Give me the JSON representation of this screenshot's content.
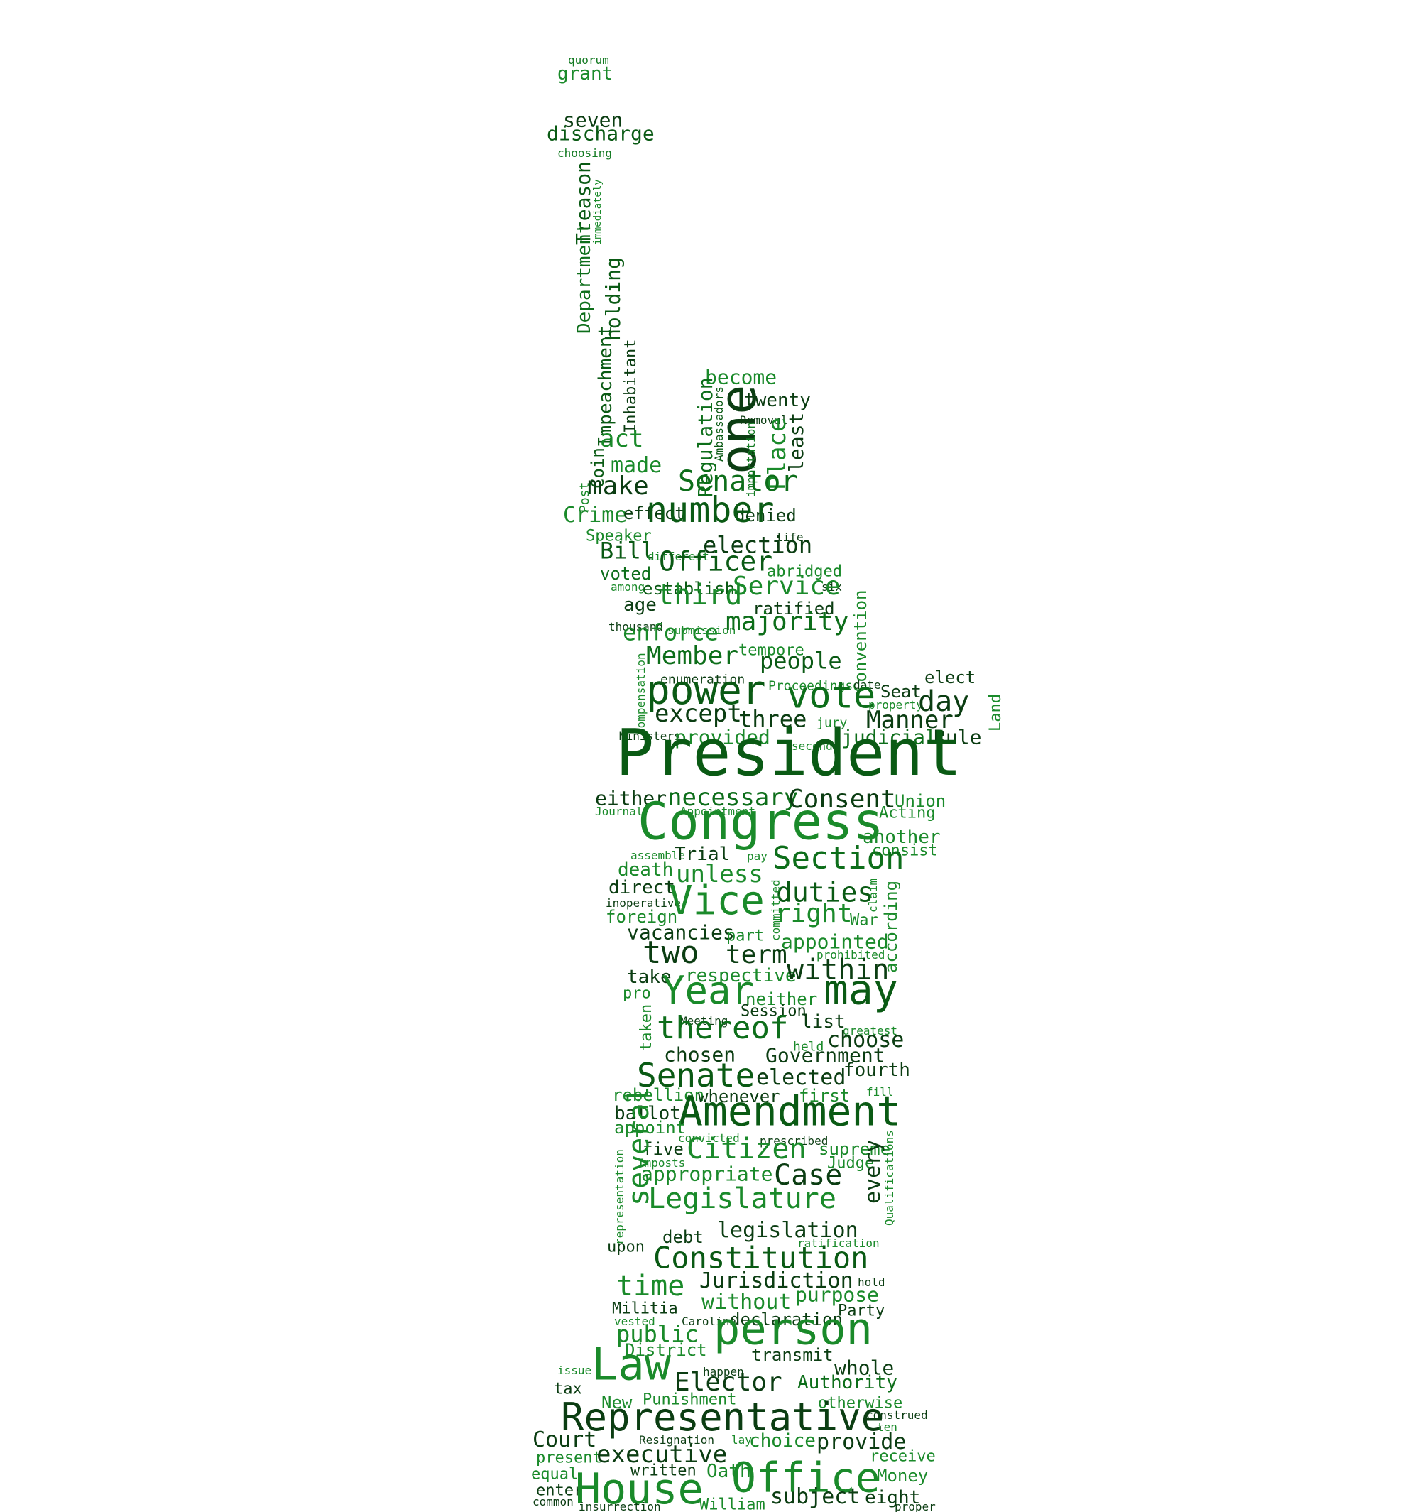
{
  "palette": [
    "#0a5a14",
    "#0d6e1a",
    "#1a8a2a",
    "#0b3d12",
    "#2a9a3a",
    "#137a22"
  ],
  "words": [
    {
      "text": "quorum"
    },
    {
      "text": "grant"
    },
    {
      "text": "seven"
    },
    {
      "text": "discharge"
    },
    {
      "text": "choosing"
    },
    {
      "text": "Treason"
    },
    {
      "text": "immediately"
    },
    {
      "text": "Department"
    },
    {
      "text": "holding"
    },
    {
      "text": "Impeachment"
    },
    {
      "text": "Inhabitant"
    },
    {
      "text": "become"
    },
    {
      "text": "twenty"
    },
    {
      "text": "Removal"
    },
    {
      "text": "Regulation"
    },
    {
      "text": "Ambassadors"
    },
    {
      "text": "one"
    },
    {
      "text": "importation"
    },
    {
      "text": "Place"
    },
    {
      "text": "least"
    },
    {
      "text": "act"
    },
    {
      "text": "Coin"
    },
    {
      "text": "made"
    },
    {
      "text": "Post"
    },
    {
      "text": "make"
    },
    {
      "text": "Senator"
    },
    {
      "text": "Crime"
    },
    {
      "text": "effect"
    },
    {
      "text": "denied"
    },
    {
      "text": "Speaker"
    },
    {
      "text": "number"
    },
    {
      "text": "life"
    },
    {
      "text": "Bill"
    },
    {
      "text": "different"
    },
    {
      "text": "election"
    },
    {
      "text": "voted"
    },
    {
      "text": "Officer"
    },
    {
      "text": "abridged"
    },
    {
      "text": "among"
    },
    {
      "text": "six"
    },
    {
      "text": "establish"
    },
    {
      "text": "Service"
    },
    {
      "text": "age"
    },
    {
      "text": "third"
    },
    {
      "text": "ratified"
    },
    {
      "text": "thousand"
    },
    {
      "text": "submission"
    },
    {
      "text": "majority"
    },
    {
      "text": "Convention"
    },
    {
      "text": "enforce"
    },
    {
      "text": "tempore"
    },
    {
      "text": "Member"
    },
    {
      "text": "people"
    },
    {
      "text": "Compensation"
    },
    {
      "text": "enumeration"
    },
    {
      "text": "Proceedings"
    },
    {
      "text": "date"
    },
    {
      "text": "elect"
    },
    {
      "text": "power"
    },
    {
      "text": "vote"
    },
    {
      "text": "Seat"
    },
    {
      "text": "property"
    },
    {
      "text": "day"
    },
    {
      "text": "Land"
    },
    {
      "text": "except"
    },
    {
      "text": "three"
    },
    {
      "text": "jury"
    },
    {
      "text": "Manner"
    },
    {
      "text": "Ministers"
    },
    {
      "text": "provided"
    },
    {
      "text": "judicial"
    },
    {
      "text": "Rule"
    },
    {
      "text": "second"
    },
    {
      "text": "President"
    },
    {
      "text": "either"
    },
    {
      "text": "necessary"
    },
    {
      "text": "Consent"
    },
    {
      "text": "Union"
    },
    {
      "text": "Journal"
    },
    {
      "text": "Appointment"
    },
    {
      "text": "Acting"
    },
    {
      "text": "Congress"
    },
    {
      "text": "another"
    },
    {
      "text": "assemble"
    },
    {
      "text": "Trial"
    },
    {
      "text": "pay"
    },
    {
      "text": "consist"
    },
    {
      "text": "Section"
    },
    {
      "text": "death"
    },
    {
      "text": "unless"
    },
    {
      "text": "direct"
    },
    {
      "text": "inoperative"
    },
    {
      "text": "Vice"
    },
    {
      "text": "duties"
    },
    {
      "text": "claim"
    },
    {
      "text": "according"
    },
    {
      "text": "foreign"
    },
    {
      "text": "committed"
    },
    {
      "text": "right"
    },
    {
      "text": "War"
    },
    {
      "text": "vacancies"
    },
    {
      "text": "part"
    },
    {
      "text": "appointed"
    },
    {
      "text": "prohibited"
    },
    {
      "text": "two"
    },
    {
      "text": "term"
    },
    {
      "text": "take"
    },
    {
      "text": "respective"
    },
    {
      "text": "within"
    },
    {
      "text": "pro"
    },
    {
      "text": "Year"
    },
    {
      "text": "neither"
    },
    {
      "text": "may"
    },
    {
      "text": "taken"
    },
    {
      "text": "Meeting"
    },
    {
      "text": "Session"
    },
    {
      "text": "list"
    },
    {
      "text": "greatest"
    },
    {
      "text": "thereof"
    },
    {
      "text": "held"
    },
    {
      "text": "choose"
    },
    {
      "text": "chosen"
    },
    {
      "text": "Government"
    },
    {
      "text": "Senate"
    },
    {
      "text": "elected"
    },
    {
      "text": "fourth"
    },
    {
      "text": "fill"
    },
    {
      "text": "rebellion"
    },
    {
      "text": "whenever"
    },
    {
      "text": "first"
    },
    {
      "text": "ballot"
    },
    {
      "text": "Amendment"
    },
    {
      "text": "appoint"
    },
    {
      "text": "convicted"
    },
    {
      "text": "prescribed"
    },
    {
      "text": "five"
    },
    {
      "text": "Citizen"
    },
    {
      "text": "supreme"
    },
    {
      "text": "several"
    },
    {
      "text": "Imposts"
    },
    {
      "text": "Judge"
    },
    {
      "text": "representation"
    },
    {
      "text": "appropriate"
    },
    {
      "text": "Case"
    },
    {
      "text": "every"
    },
    {
      "text": "Qualifications"
    },
    {
      "text": "Legislature"
    },
    {
      "text": "debt"
    },
    {
      "text": "legislation"
    },
    {
      "text": "upon"
    },
    {
      "text": "ratification"
    },
    {
      "text": "Constitution"
    },
    {
      "text": "Jurisdiction"
    },
    {
      "text": "time"
    },
    {
      "text": "hold"
    },
    {
      "text": "purpose"
    },
    {
      "text": "without"
    },
    {
      "text": "Militia"
    },
    {
      "text": "Party"
    },
    {
      "text": "vested"
    },
    {
      "text": "Carolina"
    },
    {
      "text": "declaration"
    },
    {
      "text": "public"
    },
    {
      "text": "person"
    },
    {
      "text": "District"
    },
    {
      "text": "transmit"
    },
    {
      "text": "issue"
    },
    {
      "text": "Law"
    },
    {
      "text": "happen"
    },
    {
      "text": "whole"
    },
    {
      "text": "tax"
    },
    {
      "text": "Elector"
    },
    {
      "text": "Authority"
    },
    {
      "text": "New"
    },
    {
      "text": "Punishment"
    },
    {
      "text": "otherwise"
    },
    {
      "text": "construed"
    },
    {
      "text": "Representative"
    },
    {
      "text": "ten"
    },
    {
      "text": "Resignation"
    },
    {
      "text": "lay"
    },
    {
      "text": "Court"
    },
    {
      "text": "choice"
    },
    {
      "text": "provide"
    },
    {
      "text": "present"
    },
    {
      "text": "executive"
    },
    {
      "text": "receive"
    },
    {
      "text": "written"
    },
    {
      "text": "Oath"
    },
    {
      "text": "Office"
    },
    {
      "text": "equal"
    },
    {
      "text": "Money"
    },
    {
      "text": "enter"
    },
    {
      "text": "House"
    },
    {
      "text": "subject"
    },
    {
      "text": "eight"
    },
    {
      "text": "common"
    },
    {
      "text": "insurrection"
    },
    {
      "text": "William"
    },
    {
      "text": "proper"
    }
  ]
}
